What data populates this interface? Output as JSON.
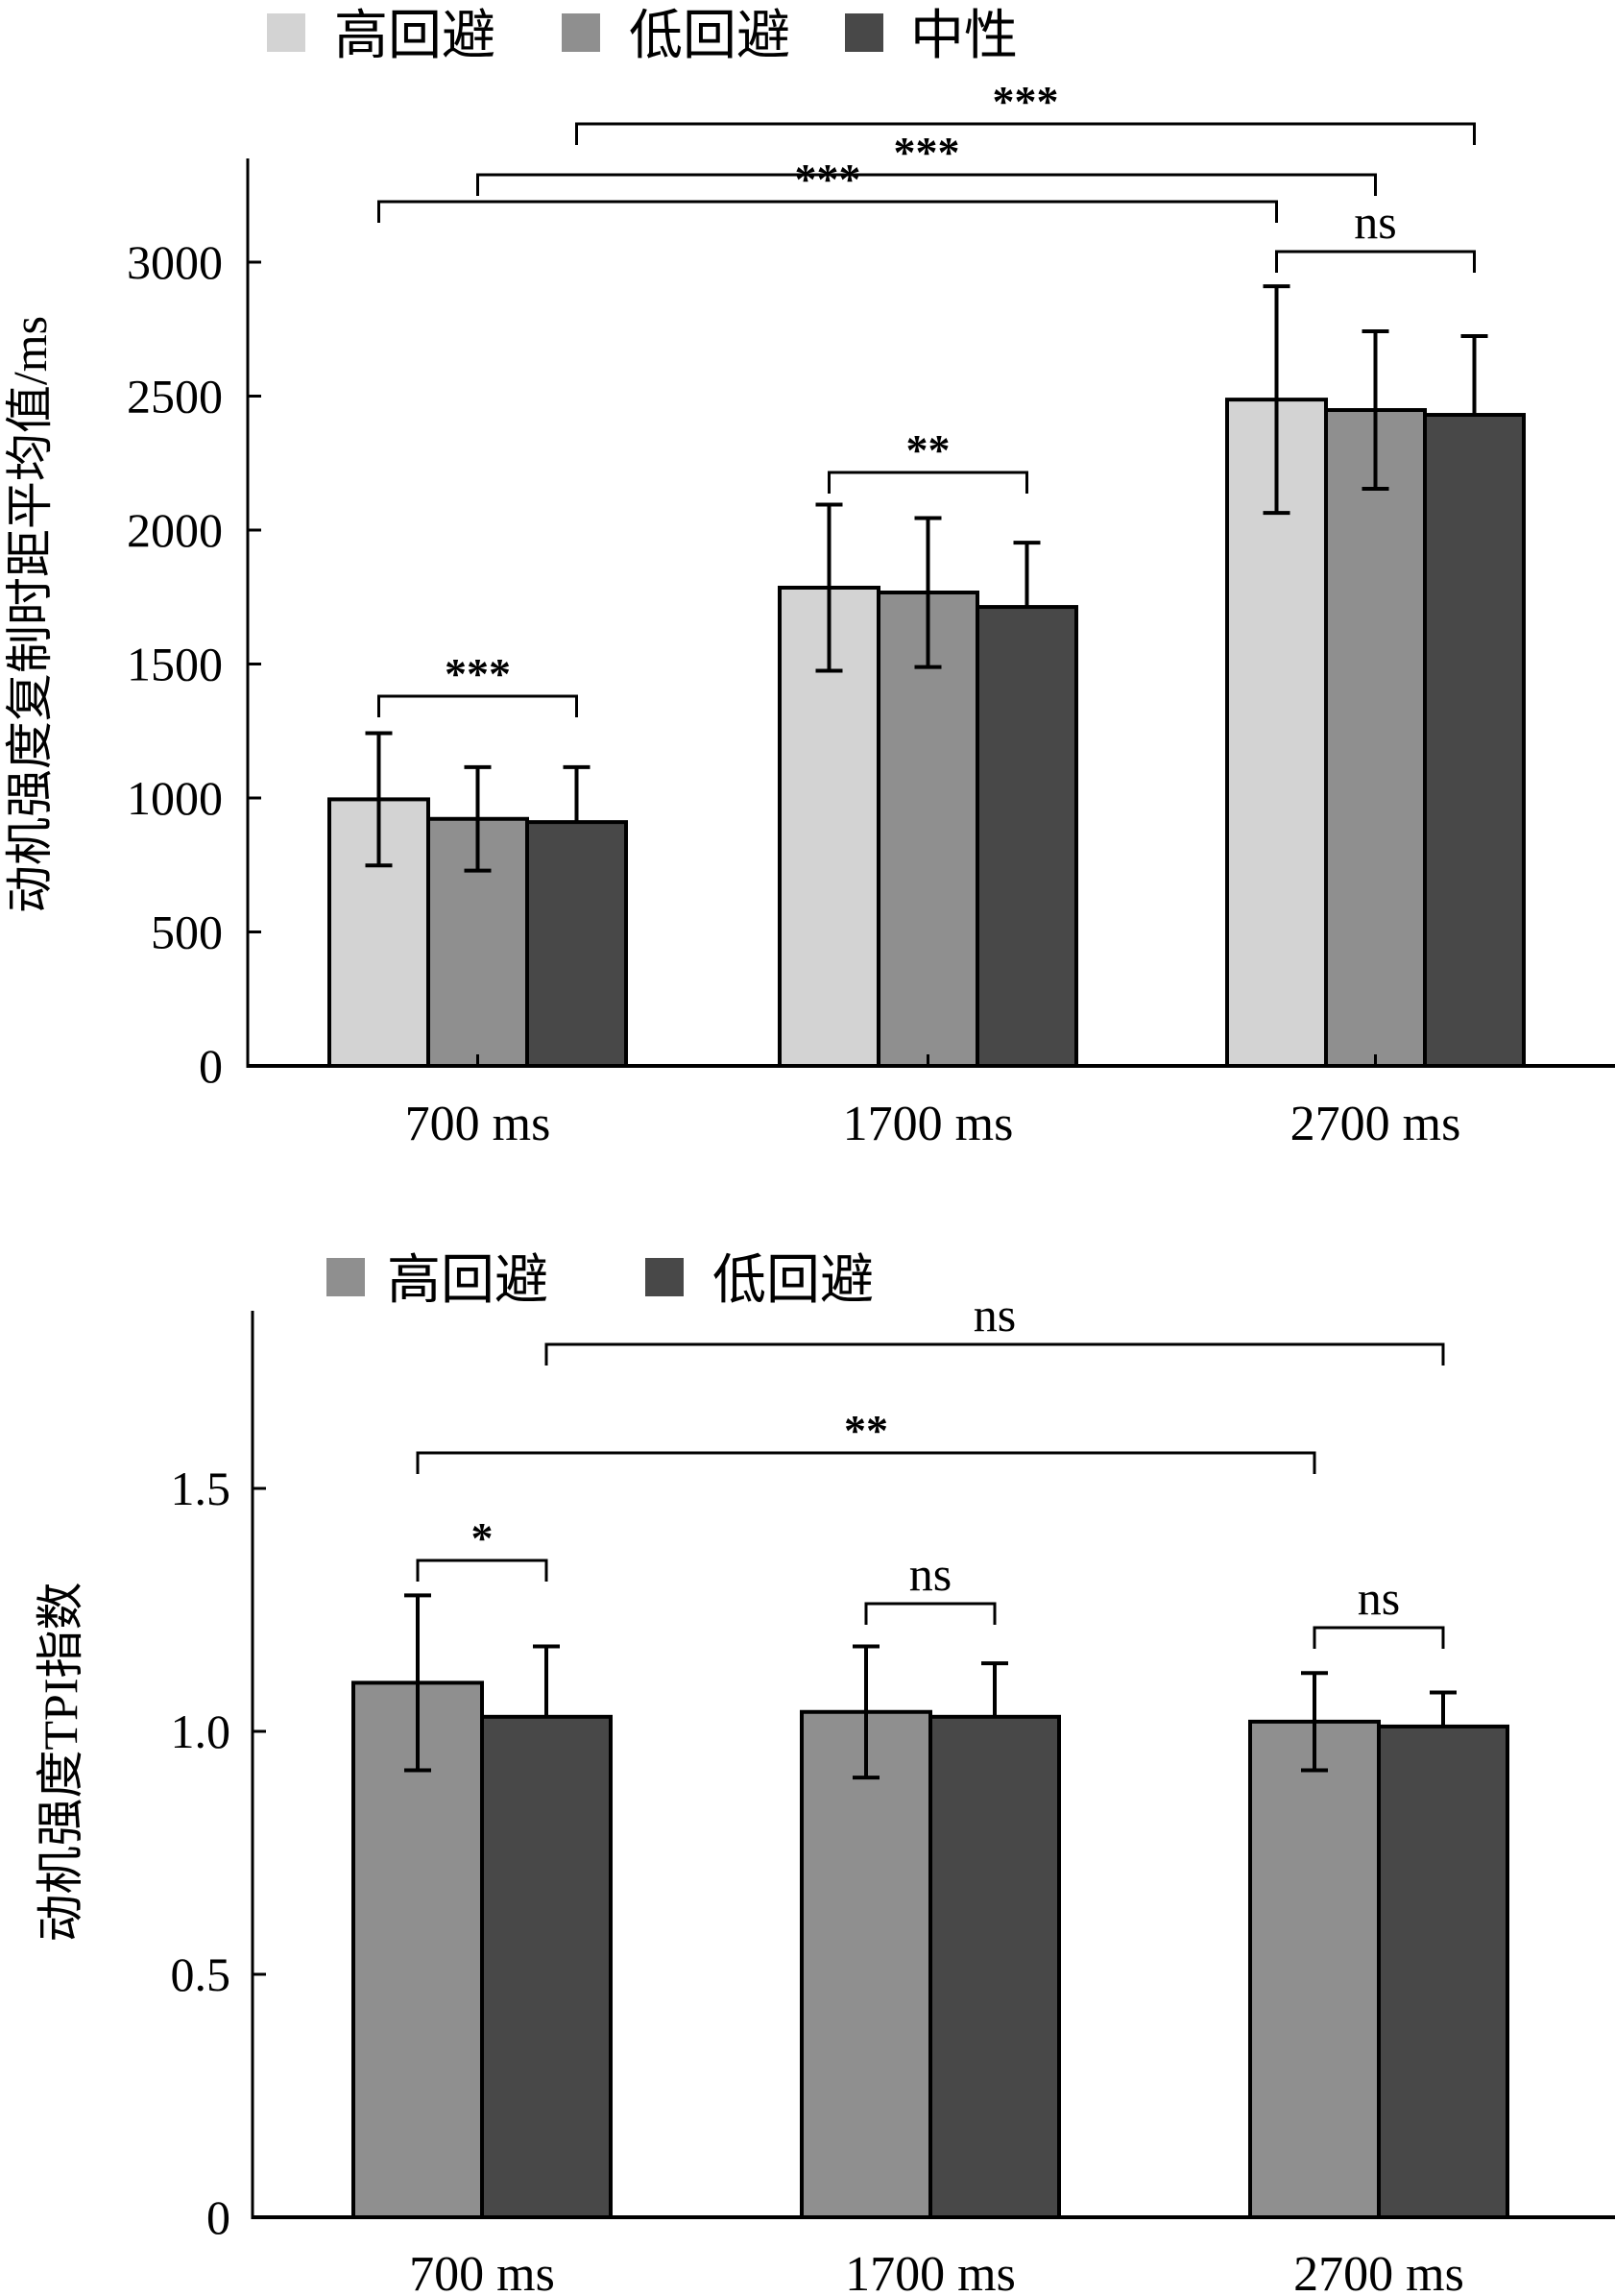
{
  "chart_data": [
    {
      "type": "bar",
      "title": "",
      "xlabel": "",
      "ylabel": "动机强度复制时距平均值/ms",
      "ylim": [
        0,
        3400
      ],
      "yticks": [
        0,
        500,
        1000,
        1500,
        2000,
        2500,
        3000
      ],
      "yticklabels": [
        "0",
        "500",
        "1000",
        "1500",
        "2000",
        "2500",
        "3000"
      ],
      "categories": [
        "700 ms",
        "1700 ms",
        "2700 ms"
      ],
      "legend": {
        "placement": "top-left",
        "entries": [
          "高回避",
          "低回避",
          "中性"
        ]
      },
      "grid": false,
      "error_bars": "one-sided for 中性, two-sided otherwise (±SD)",
      "series": [
        {
          "name": "高回避",
          "color": "#d3d3d3",
          "values": [
            995,
            1785,
            2487
          ],
          "error": [
            247,
            310,
            423
          ],
          "error_direction": "both"
        },
        {
          "name": "低回避",
          "color": "#8f8f8f",
          "values": [
            922,
            1767,
            2448
          ],
          "error": [
            193,
            278,
            294
          ],
          "error_direction": "both"
        },
        {
          "name": "中性",
          "color": "#484848",
          "values": [
            910,
            1713,
            2430
          ],
          "error": [
            205,
            240,
            294
          ],
          "error_direction": "up"
        }
      ],
      "significance": [
        {
          "label": "***",
          "from": {
            "category": 0,
            "series": 0
          },
          "to": {
            "category": 0,
            "series": 2
          }
        },
        {
          "label": "**",
          "from": {
            "category": 1,
            "series": 0
          },
          "to": {
            "category": 1,
            "series": 2
          }
        },
        {
          "label": "ns",
          "from": {
            "category": 2,
            "series": 0
          },
          "to": {
            "category": 2,
            "series": 2
          }
        },
        {
          "label": "***",
          "from": {
            "category": 0,
            "series": 0
          },
          "to": {
            "category": 2,
            "series": 0
          }
        },
        {
          "label": "***",
          "from": {
            "category": 0,
            "series": 1
          },
          "to": {
            "category": 2,
            "series": 1
          }
        },
        {
          "label": "***",
          "from": {
            "category": 0,
            "series": 2
          },
          "to": {
            "category": 2,
            "series": 2
          }
        }
      ]
    },
    {
      "type": "bar",
      "title": "",
      "xlabel": "",
      "ylabel": "动机强度TPI指数",
      "ylim": [
        0,
        1.85
      ],
      "yticks": [
        0,
        0.5,
        1.0,
        1.5
      ],
      "yticklabels": [
        "0",
        "0.5",
        "1.0",
        "1.5"
      ],
      "categories": [
        "700 ms",
        "1700 ms",
        "2700 ms"
      ],
      "legend": {
        "placement": "top-left",
        "entries": [
          "高回避",
          "低回避"
        ]
      },
      "grid": false,
      "series": [
        {
          "name": "高回避",
          "color": "#8f8f8f",
          "values": [
            1.1,
            1.04,
            1.02
          ],
          "error": [
            0.18,
            0.135,
            0.1
          ],
          "error_direction": "both"
        },
        {
          "name": "低回避",
          "color": "#484848",
          "values": [
            1.03,
            1.03,
            1.01
          ],
          "error": [
            0.145,
            0.11,
            0.07
          ],
          "error_direction": "up"
        }
      ],
      "significance": [
        {
          "label": "*",
          "from": {
            "category": 0,
            "series": 0
          },
          "to": {
            "category": 0,
            "series": 1
          }
        },
        {
          "label": "ns",
          "from": {
            "category": 1,
            "series": 0
          },
          "to": {
            "category": 1,
            "series": 1
          }
        },
        {
          "label": "ns",
          "from": {
            "category": 2,
            "series": 0
          },
          "to": {
            "category": 2,
            "series": 1
          }
        },
        {
          "label": "**",
          "from": {
            "category": 0,
            "series": 0
          },
          "to": {
            "category": 2,
            "series": 0
          }
        },
        {
          "label": "ns",
          "from": {
            "category": 0,
            "series": 1
          },
          "to": {
            "category": 2,
            "series": 1
          }
        }
      ]
    }
  ]
}
